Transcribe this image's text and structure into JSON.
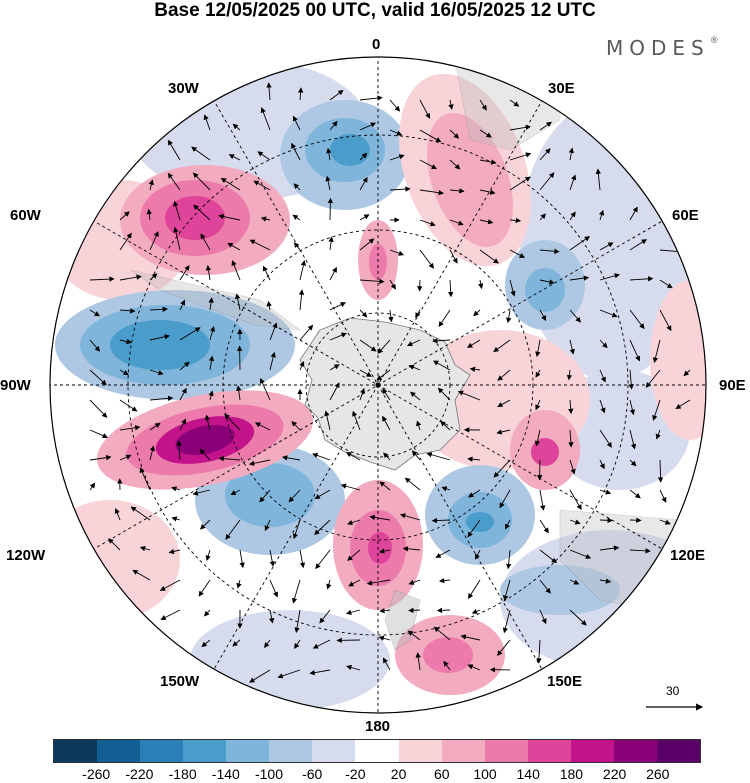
{
  "title": "Base 12/05/2025 00 UTC, valid 16/05/2025 12 UTC",
  "brand": {
    "name": "MODES",
    "mark": "®"
  },
  "longitude_labels": [
    "0",
    "30E",
    "60E",
    "90E",
    "120E",
    "150E",
    "180",
    "150W",
    "120W",
    "90W",
    "60W",
    "30W"
  ],
  "wind_scale": {
    "value": "30"
  },
  "colorbar": {
    "ticks": [
      "-260",
      "-220",
      "-180",
      "-140",
      "-100",
      "-60",
      "-20",
      "20",
      "60",
      "100",
      "140",
      "180",
      "220",
      "260"
    ],
    "colors": [
      "#0c3a5c",
      "#125f93",
      "#2b7fb8",
      "#4a9ccb",
      "#7fb5da",
      "#aec8e4",
      "#d6dcee",
      "#ffffff",
      "#f8d4d8",
      "#f3abc0",
      "#ec7aab",
      "#de4499",
      "#c2138a",
      "#8b0078",
      "#5b0068"
    ]
  },
  "map": {
    "projection": "south-polar-stereographic",
    "field": "anomaly",
    "land_color": "#e6e6e6"
  }
}
